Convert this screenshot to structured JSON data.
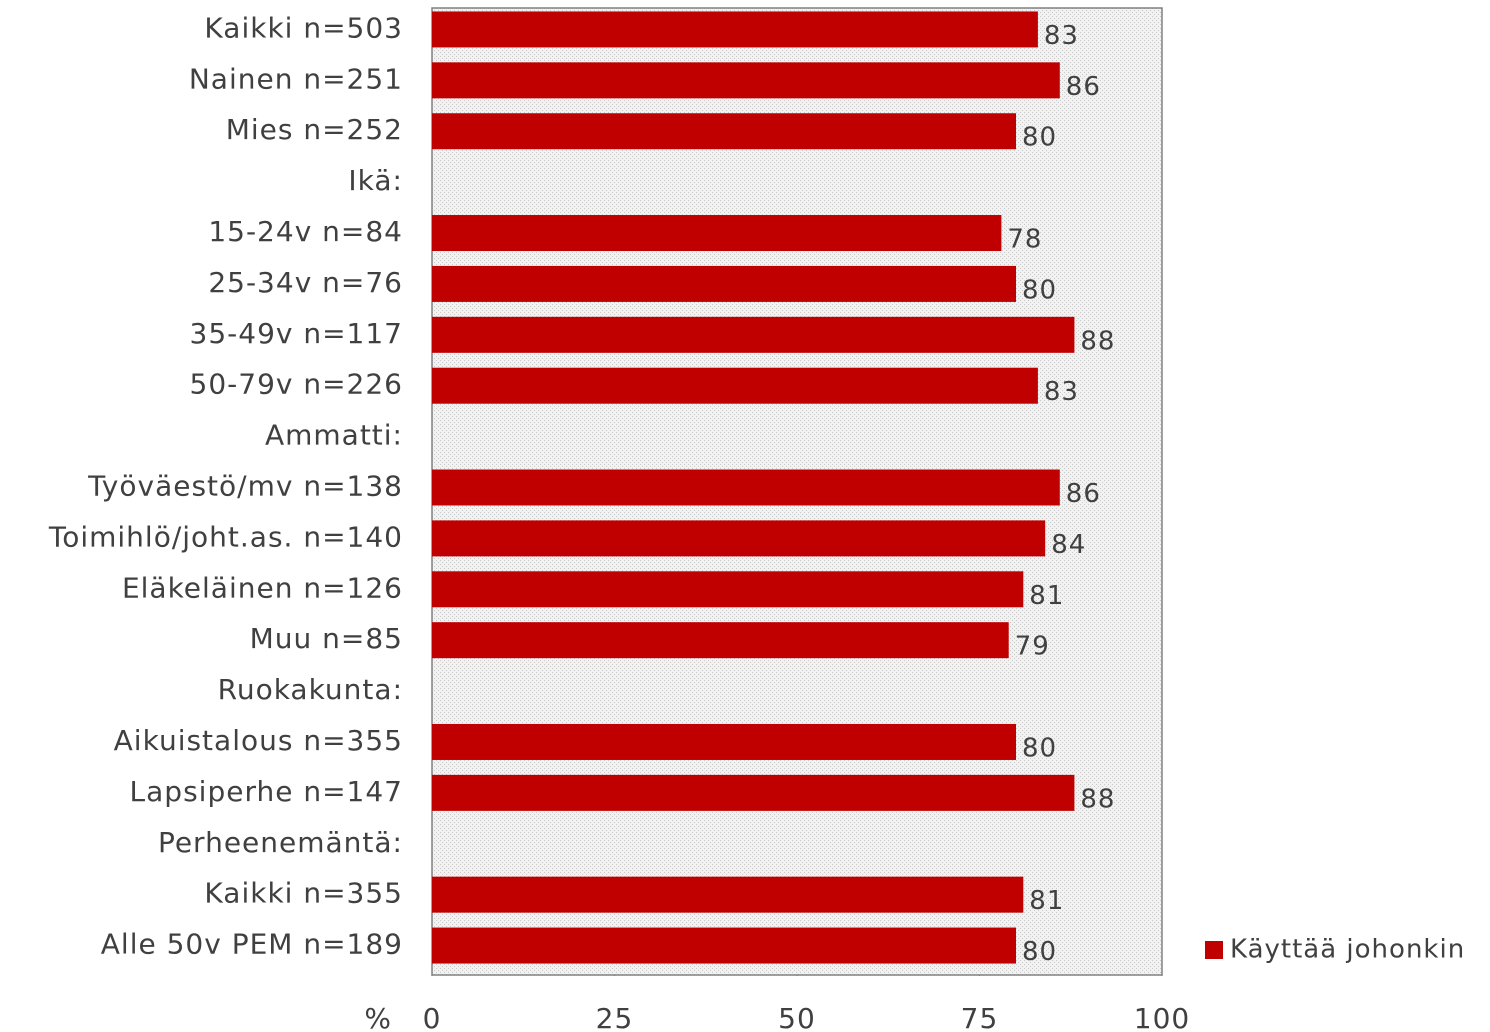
{
  "chart_data": {
    "type": "barh",
    "xlabel": "%",
    "categories": [
      "Kaikki n=503",
      "Nainen n=251",
      "Mies n=252",
      "Ikä:",
      "15-24v n=84",
      "25-34v n=76",
      "35-49v n=117",
      "50-79v n=226",
      "Ammatti:",
      "Työväestö/mv n=138",
      "Toimihlö/joht.as. n=140",
      "Eläkeläinen n=126",
      "Muu n=85",
      "Ruokakunta:",
      "Aikuistalous n=355",
      "Lapsiperhe n=147",
      "Perheenemäntä:",
      "Kaikki n=355",
      "Alle 50v PEM n=189"
    ],
    "series": [
      {
        "name": "Käyttää johonkin",
        "color": "#c00000",
        "values": [
          83,
          86,
          80,
          null,
          78,
          80,
          88,
          83,
          null,
          86,
          84,
          81,
          79,
          null,
          80,
          88,
          null,
          81,
          80
        ]
      }
    ],
    "xlim": [
      0,
      100
    ],
    "xticks": [
      0,
      25,
      50,
      75,
      100
    ],
    "legend": "right"
  }
}
